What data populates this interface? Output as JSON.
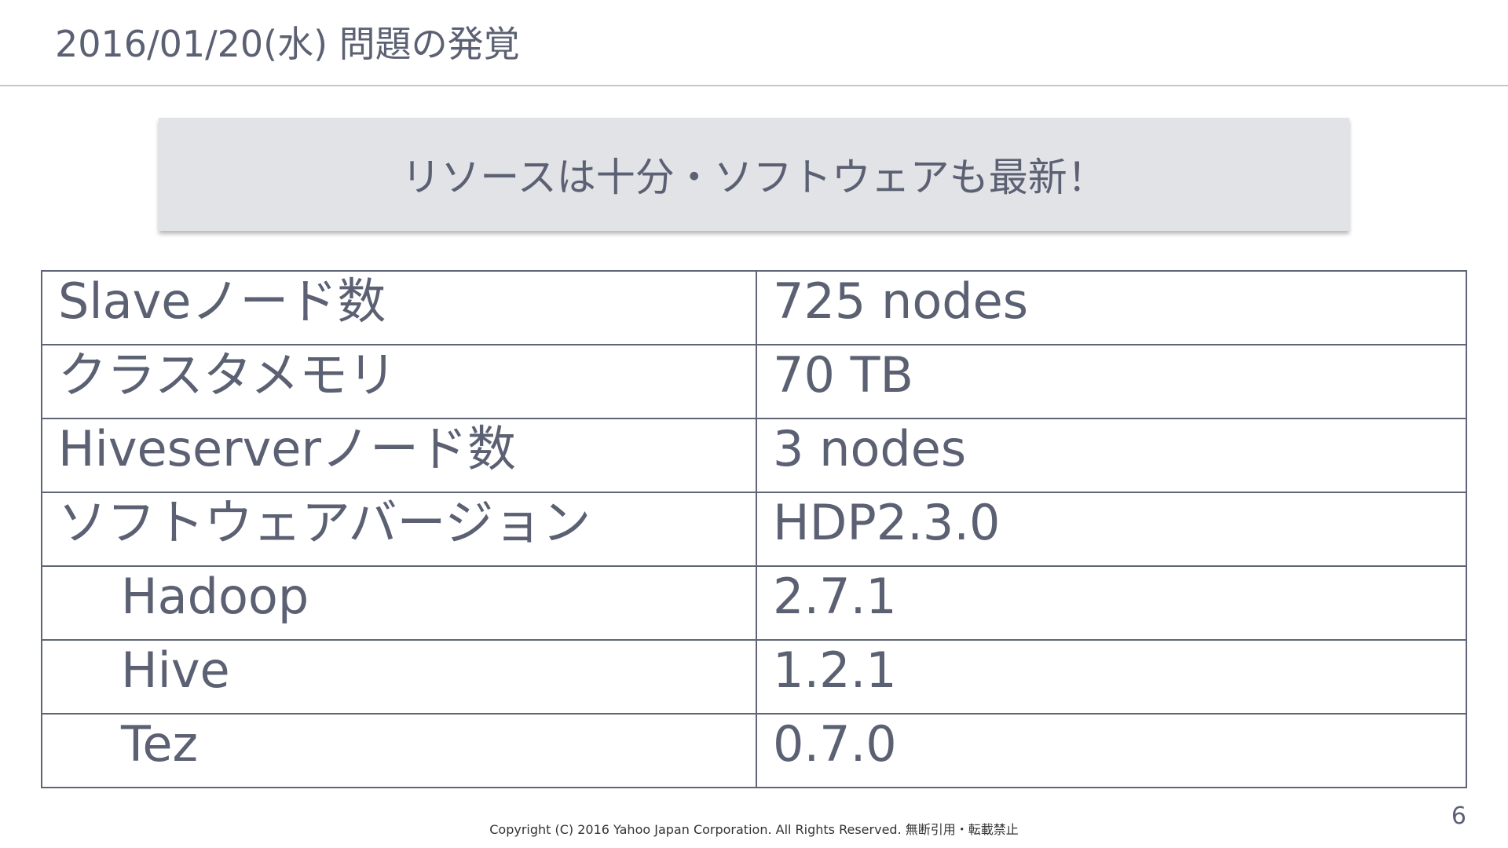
{
  "slide": {
    "title": "2016/01/20(水) 問題の発覚",
    "callout": "リソースは十分・ソフトウェアも最新！",
    "page_number": "6",
    "copyright": "Copyright (C) 2016 Yahoo Japan Corporation. All Rights Reserved. 無断引用・転載禁止"
  },
  "spec_table": {
    "rows": [
      {
        "label": "Slaveノード数",
        "value": "725 nodes"
      },
      {
        "label": "クラスタメモリ",
        "value": "70 TB"
      },
      {
        "label": "Hiveserverノード数",
        "value": "3 nodes"
      },
      {
        "label": "ソフトウェアバージョン",
        "value": "HDP2.3.0"
      },
      {
        "label": "Hadoop",
        "value": "2.7.1"
      },
      {
        "label": "Hive",
        "value": "1.2.1"
      },
      {
        "label": "Tez",
        "value": "0.7.0"
      }
    ]
  },
  "colors": {
    "text": "#5b6173",
    "callout_background": "#e2e3e7",
    "table_border": "#5f6577"
  }
}
